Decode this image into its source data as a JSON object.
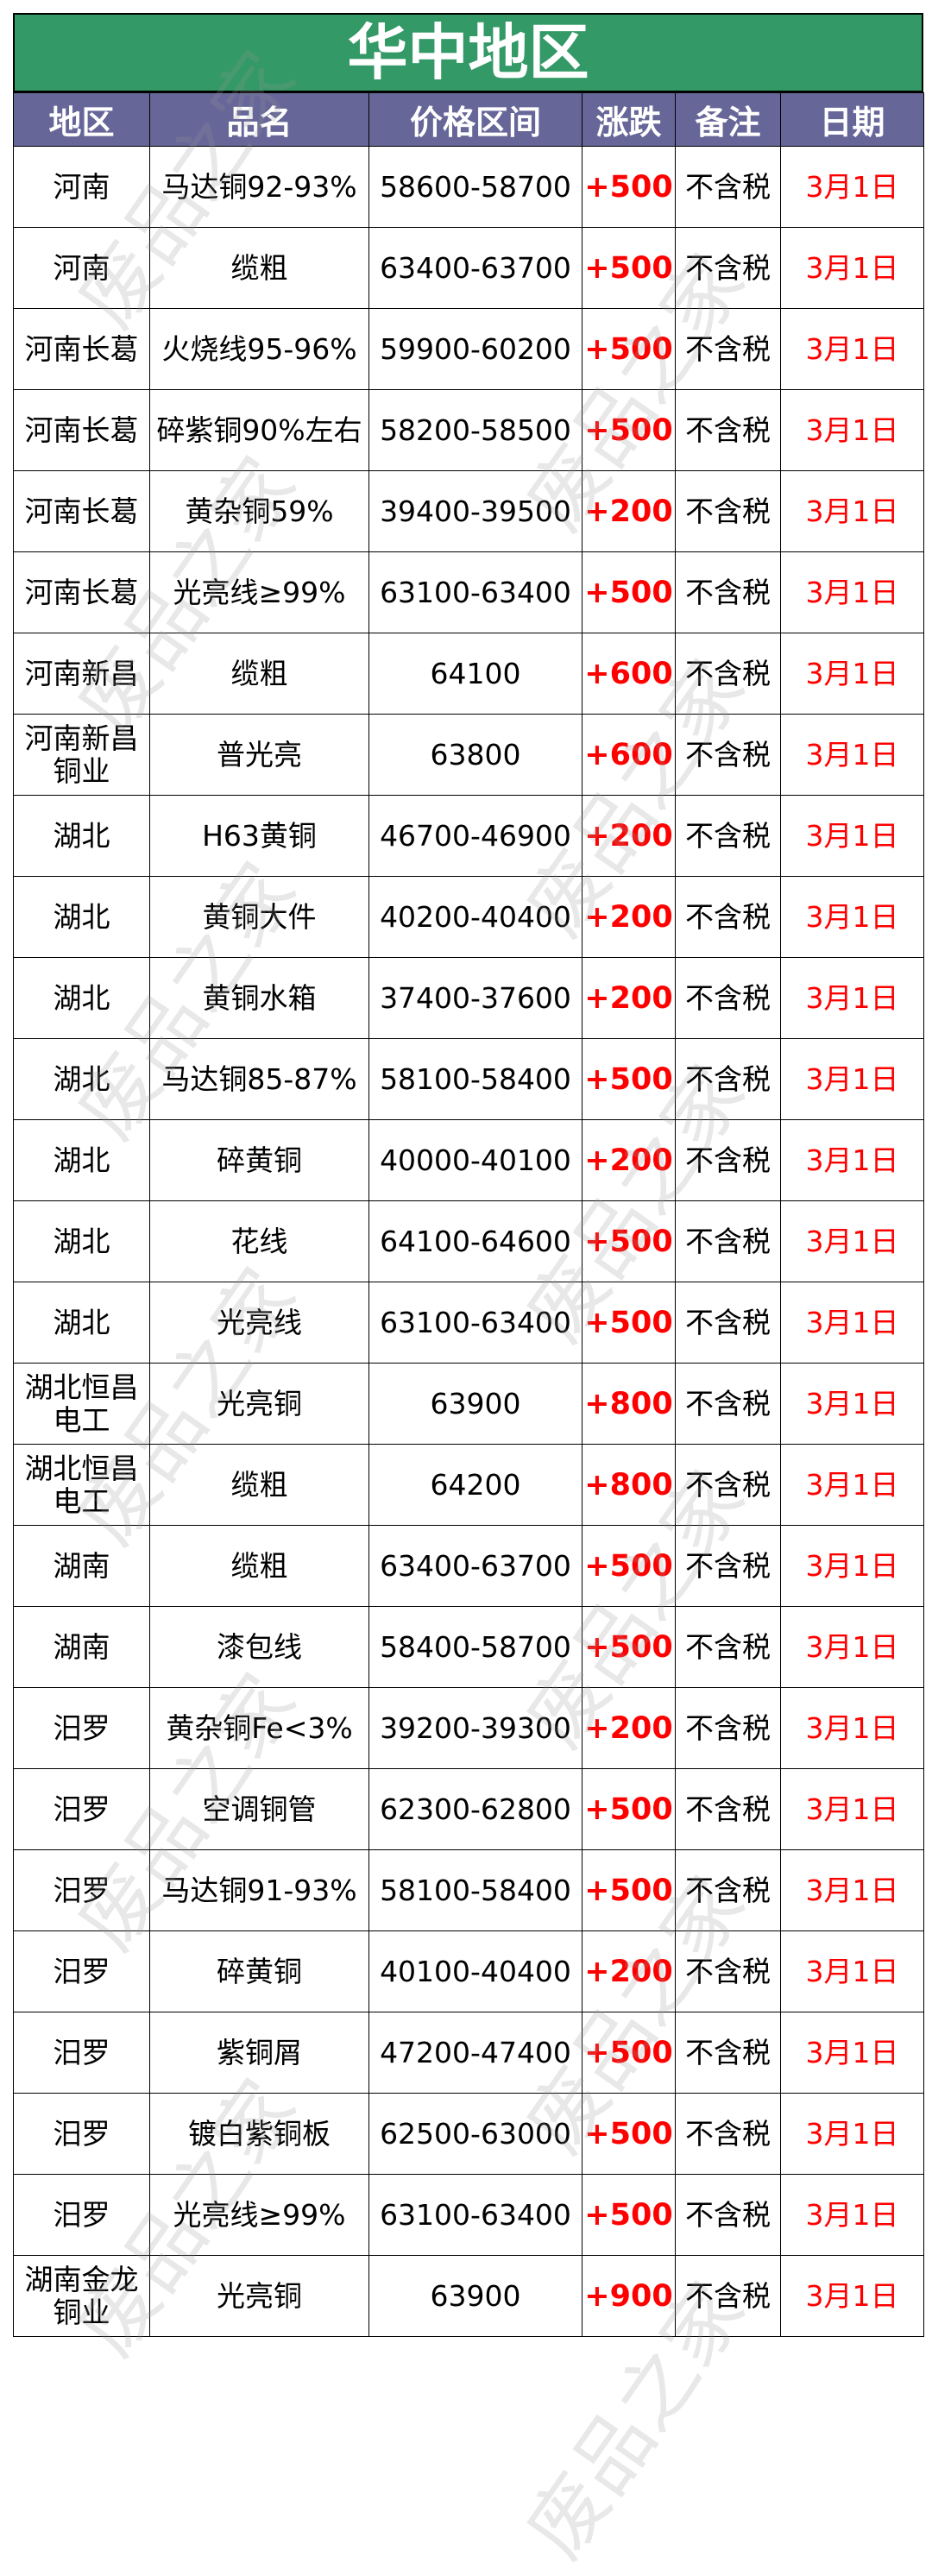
{
  "title": "华中地区",
  "watermark": "废品之家",
  "colors": {
    "title_bg": "#339966",
    "header_bg": "#666699",
    "change": "#ff0000",
    "date": "#ff0000"
  },
  "columns": [
    "地区",
    "品名",
    "价格区间",
    "涨跌",
    "备注",
    "日期"
  ],
  "rows": [
    [
      "河南",
      "马达铜92-93%",
      "58600-58700",
      "+500",
      "不含税",
      "3月1日"
    ],
    [
      "河南",
      "缆粗",
      "63400-63700",
      "+500",
      "不含税",
      "3月1日"
    ],
    [
      "河南长葛",
      "火烧线95-96%",
      "59900-60200",
      "+500",
      "不含税",
      "3月1日"
    ],
    [
      "河南长葛",
      "碎紫铜90%左右",
      "58200-58500",
      "+500",
      "不含税",
      "3月1日"
    ],
    [
      "河南长葛",
      "黄杂铜59%",
      "39400-39500",
      "+200",
      "不含税",
      "3月1日"
    ],
    [
      "河南长葛",
      "光亮线≥99%",
      "63100-63400",
      "+500",
      "不含税",
      "3月1日"
    ],
    [
      "河南新昌",
      "缆粗",
      "64100",
      "+600",
      "不含税",
      "3月1日"
    ],
    [
      "河南新昌铜业",
      "普光亮",
      "63800",
      "+600",
      "不含税",
      "3月1日"
    ],
    [
      "湖北",
      "H63黄铜",
      "46700-46900",
      "+200",
      "不含税",
      "3月1日"
    ],
    [
      "湖北",
      "黄铜大件",
      "40200-40400",
      "+200",
      "不含税",
      "3月1日"
    ],
    [
      "湖北",
      "黄铜水箱",
      "37400-37600",
      "+200",
      "不含税",
      "3月1日"
    ],
    [
      "湖北",
      "马达铜85-87%",
      "58100-58400",
      "+500",
      "不含税",
      "3月1日"
    ],
    [
      "湖北",
      "碎黄铜",
      "40000-40100",
      "+200",
      "不含税",
      "3月1日"
    ],
    [
      "湖北",
      "花线",
      "64100-64600",
      "+500",
      "不含税",
      "3月1日"
    ],
    [
      "湖北",
      "光亮线",
      "63100-63400",
      "+500",
      "不含税",
      "3月1日"
    ],
    [
      "湖北恒昌电工",
      "光亮铜",
      "63900",
      "+800",
      "不含税",
      "3月1日"
    ],
    [
      "湖北恒昌电工",
      "缆粗",
      "64200",
      "+800",
      "不含税",
      "3月1日"
    ],
    [
      "湖南",
      "缆粗",
      "63400-63700",
      "+500",
      "不含税",
      "3月1日"
    ],
    [
      "湖南",
      "漆包线",
      "58400-58700",
      "+500",
      "不含税",
      "3月1日"
    ],
    [
      "汨罗",
      "黄杂铜Fe<3%",
      "39200-39300",
      "+200",
      "不含税",
      "3月1日"
    ],
    [
      "汨罗",
      "空调铜管",
      "62300-62800",
      "+500",
      "不含税",
      "3月1日"
    ],
    [
      "汨罗",
      "马达铜91-93%",
      "58100-58400",
      "+500",
      "不含税",
      "3月1日"
    ],
    [
      "汨罗",
      "碎黄铜",
      "40100-40400",
      "+200",
      "不含税",
      "3月1日"
    ],
    [
      "汨罗",
      "紫铜屑",
      "47200-47400",
      "+500",
      "不含税",
      "3月1日"
    ],
    [
      "汨罗",
      "镀白紫铜板",
      "62500-63000",
      "+500",
      "不含税",
      "3月1日"
    ],
    [
      "汨罗",
      "光亮线≥99%",
      "63100-63400",
      "+500",
      "不含税",
      "3月1日"
    ],
    [
      "湖南金龙铜业",
      "光亮铜",
      "63900",
      "+900",
      "不含税",
      "3月1日"
    ]
  ]
}
